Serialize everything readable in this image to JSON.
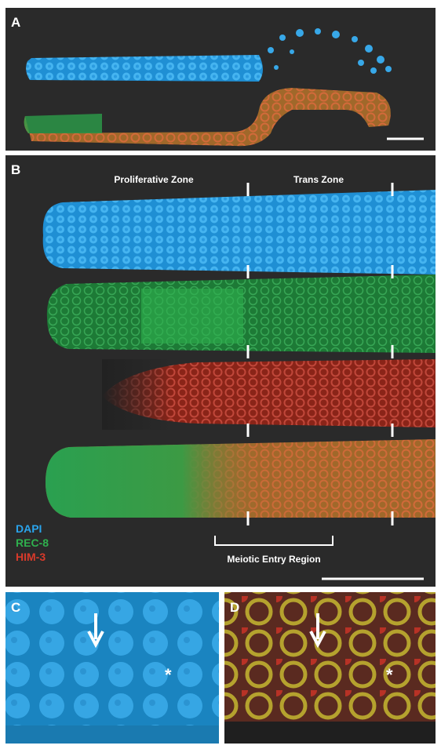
{
  "panels": [
    {
      "label": "A"
    },
    {
      "label": "B",
      "zones": [
        "Proliferative Zone",
        "Trans Zone"
      ],
      "legend": [
        "DAPI",
        "REC-8",
        "HIM-3"
      ],
      "region": "Meiotic Entry Region"
    },
    {
      "label": "C",
      "marker": "*"
    },
    {
      "label": "D",
      "marker": "*"
    }
  ]
}
